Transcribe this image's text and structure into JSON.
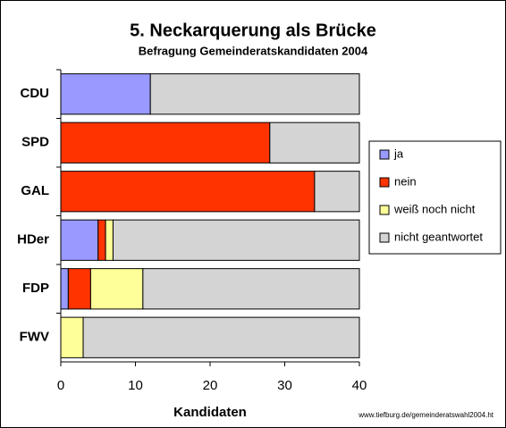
{
  "chart_data": {
    "type": "hbar-stacked",
    "title": "5. Neckarquerung als Brücke",
    "subtitle": "Befragung Gemeinderatskandidaten 2004",
    "x_label": "Kandidaten",
    "footer": "www.tiefburg.de/gemeinderatswahl2004.ht",
    "categories": [
      "CDU",
      "SPD",
      "GAL",
      "HDer",
      "FDP",
      "FWV"
    ],
    "series": [
      {
        "name": "ja",
        "color": "#9999ff",
        "values": [
          12,
          0,
          0,
          5,
          1,
          0
        ]
      },
      {
        "name": "nein",
        "color": "#ff3300",
        "values": [
          0,
          28,
          34,
          1,
          3,
          0
        ]
      },
      {
        "name": "weiß noch nicht",
        "color": "#ffff99",
        "values": [
          0,
          0,
          0,
          1,
          7,
          3
        ]
      },
      {
        "name": "nicht geantwortet",
        "color": "#d4d4d4",
        "values": [
          28,
          12,
          6,
          33,
          29,
          37
        ]
      }
    ],
    "xlim": [
      0,
      40
    ],
    "xticks": [
      0,
      10,
      20,
      30,
      40
    ],
    "legend": "right"
  }
}
